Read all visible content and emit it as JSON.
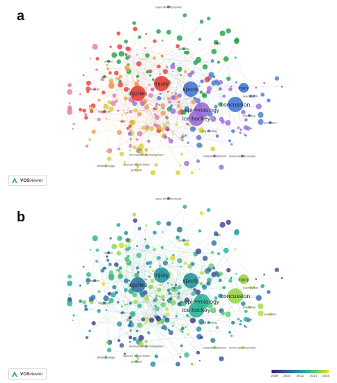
{
  "figure": {
    "panels": [
      {
        "letter": "a",
        "coloring": "cluster"
      },
      {
        "letter": "b",
        "coloring": "overlay"
      }
    ]
  },
  "logo": {
    "strong": "VOS",
    "rest": "viewer"
  },
  "colorbar": {
    "ticks": [
      "2008",
      "2010",
      "2012",
      "2014",
      "2016"
    ],
    "colors": [
      "#3b1f72",
      "#3f4b96",
      "#2e7ea6",
      "#22b1a0",
      "#6fd06a",
      "#e8e020"
    ]
  },
  "chart_data": {
    "type": "network",
    "colors": {
      "cluster": {
        "red": "#e8413a",
        "green": "#2aa24a",
        "blue": "#4a7bd8",
        "purple": "#9b6fd6",
        "yellow": "#d7d23a",
        "orange": "#f0a04a",
        "pink": "#e27fb0"
      }
    },
    "terms": [
      {
        "label": "injury",
        "cluster": "red",
        "year": 2012,
        "size": 3
      },
      {
        "label": "injuries",
        "cluster": "red",
        "year": 2011,
        "size": 3
      },
      {
        "label": "sports",
        "cluster": "blue",
        "year": 2012,
        "size": 3
      },
      {
        "label": "concussion",
        "cluster": "blue",
        "year": 2015,
        "size": 3
      },
      {
        "label": "epidemiology",
        "cluster": "purple",
        "year": 2013,
        "size": 3
      },
      {
        "label": "ice hockey",
        "cluster": "purple",
        "year": 2013,
        "size": 3
      },
      {
        "label": "injury",
        "cluster": "blue",
        "year": 2015,
        "size": 2
      },
      {
        "label": "upper extremity injuries",
        "cluster": "green",
        "year": 2012,
        "size": 1
      },
      {
        "label": "consensus statement",
        "cluster": "purple",
        "year": 2015,
        "size": 1
      },
      {
        "label": "femoroacetabular impingement",
        "cluster": "yellow",
        "year": 2015,
        "size": 1
      },
      {
        "label": "adductor muscle strains",
        "cluster": "yellow",
        "year": 2014,
        "size": 1
      },
      {
        "label": "groin pain",
        "cluster": "yellow",
        "year": 2014,
        "size": 1
      },
      {
        "label": "athletic pubalgia",
        "cluster": "yellow",
        "year": 2014,
        "size": 1
      },
      {
        "label": "neuron-specific enolase",
        "cluster": "blue",
        "year": 2016,
        "size": 1
      },
      {
        "label": "body checking",
        "cluster": "purple",
        "year": 2013,
        "size": 1
      },
      {
        "label": "concussion",
        "cluster": "blue",
        "year": 2016,
        "size": 1
      },
      {
        "label": "brain injury",
        "cluster": "blue",
        "year": 2015,
        "size": 1
      },
      {
        "label": "head impacts",
        "cluster": "blue",
        "year": 2016,
        "size": 1
      },
      {
        "label": "risk factors",
        "cluster": "red",
        "year": 2012,
        "size": 1
      },
      {
        "label": "hip",
        "cluster": "orange",
        "year": 2014,
        "size": 1
      },
      {
        "label": "knee",
        "cluster": "orange",
        "year": 2012,
        "size": 1
      },
      {
        "label": "shoulder",
        "cluster": "pink",
        "year": 2011,
        "size": 1
      },
      {
        "label": "prevention",
        "cluster": "green",
        "year": 2012,
        "size": 1
      },
      {
        "label": "safety",
        "cluster": "green",
        "year": 2012,
        "size": 1
      },
      {
        "label": "children",
        "cluster": "green",
        "year": 2011,
        "size": 1
      },
      {
        "label": "rules",
        "cluster": "green",
        "year": 2011,
        "size": 1
      }
    ]
  }
}
